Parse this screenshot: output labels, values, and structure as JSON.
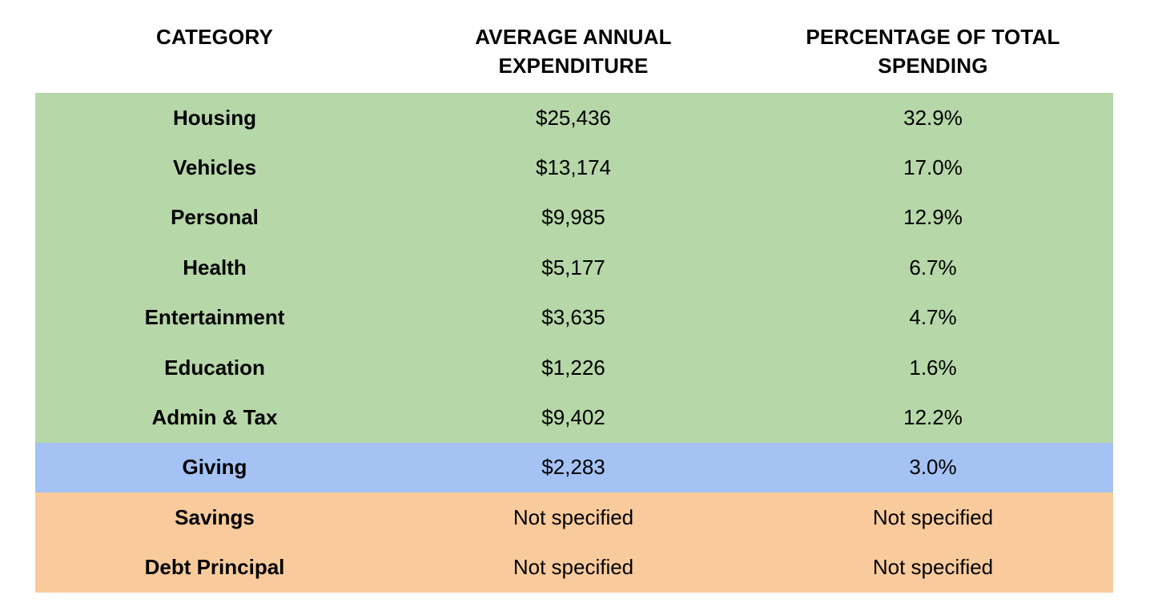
{
  "headers": {
    "category": "CATEGORY",
    "expenditure": "AVERAGE ANNUAL EXPENDITURE",
    "percentage": "PERCENTAGE OF TOTAL SPENDING"
  },
  "colors": {
    "green": "#b6d7a8",
    "blue": "#a4c2f4",
    "orange": "#f9cb9c"
  },
  "rows": [
    {
      "category": "Housing",
      "expenditure": "$25,436",
      "percentage": "32.9%",
      "group": "green"
    },
    {
      "category": "Vehicles",
      "expenditure": "$13,174",
      "percentage": "17.0%",
      "group": "green"
    },
    {
      "category": "Personal",
      "expenditure": "$9,985",
      "percentage": "12.9%",
      "group": "green"
    },
    {
      "category": "Health",
      "expenditure": "$5,177",
      "percentage": "6.7%",
      "group": "green"
    },
    {
      "category": "Entertainment",
      "expenditure": "$3,635",
      "percentage": "4.7%",
      "group": "green"
    },
    {
      "category": "Education",
      "expenditure": "$1,226",
      "percentage": "1.6%",
      "group": "green"
    },
    {
      "category": "Admin & Tax",
      "expenditure": "$9,402",
      "percentage": "12.2%",
      "group": "green"
    },
    {
      "category": "Giving",
      "expenditure": "$2,283",
      "percentage": "3.0%",
      "group": "blue"
    },
    {
      "category": "Savings",
      "expenditure": "Not specified",
      "percentage": "Not specified",
      "group": "orange"
    },
    {
      "category": "Debt Principal",
      "expenditure": "Not specified",
      "percentage": "Not specified",
      "group": "orange"
    }
  ]
}
